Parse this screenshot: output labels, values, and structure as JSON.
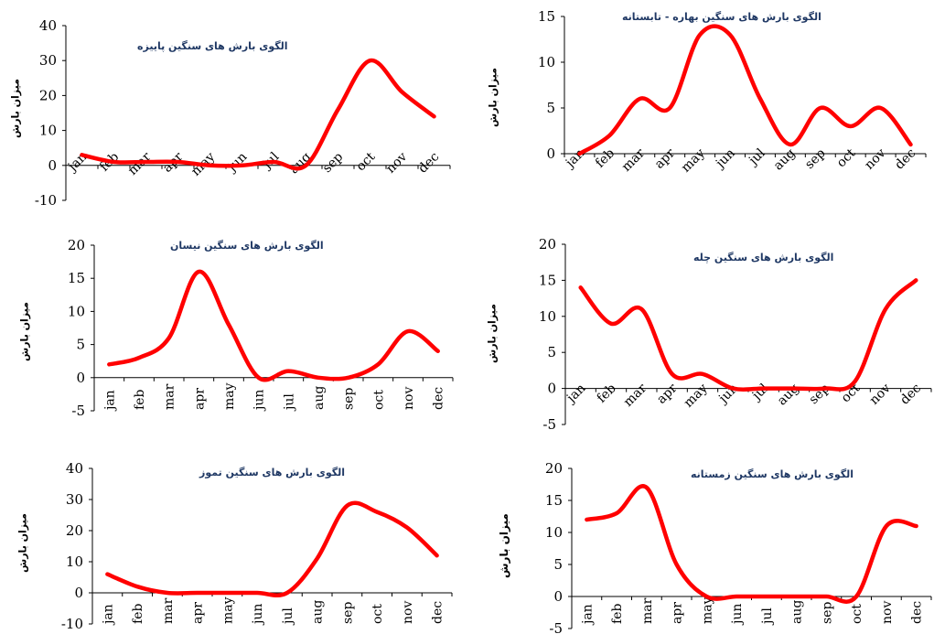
{
  "chart_data": [
    {
      "type": "line",
      "title": "الگوی بارش های سنگین پاییزه",
      "ylabel": "میزان بارش",
      "categories": [
        "jan",
        "feb",
        "mar",
        "apr",
        "may",
        "jun",
        "jul",
        "aug",
        "sep",
        "oct",
        "nov",
        "dec"
      ],
      "values": [
        3,
        1,
        1,
        1,
        0,
        0,
        1,
        0,
        16,
        30,
        21,
        14
      ],
      "ylim": [
        -10,
        40
      ],
      "yticks": [
        -10,
        0,
        10,
        20,
        30,
        40
      ],
      "x_tick_rotation": "diagonal",
      "color": "#ff0000",
      "grid": false
    },
    {
      "type": "line",
      "title": "الگوی  بارش های سنگین بهاره - تابستانه",
      "ylabel": "میزان بارش",
      "categories": [
        "jan",
        "feb",
        "mar",
        "apr",
        "may",
        "jun",
        "jul",
        "aug",
        "sep",
        "oct",
        "nov",
        "dec"
      ],
      "values": [
        0,
        2,
        6,
        5,
        13,
        13,
        6,
        1,
        5,
        3,
        5,
        1
      ],
      "ylim": [
        0,
        15
      ],
      "yticks": [
        0,
        5,
        10,
        15
      ],
      "x_tick_rotation": "diagonal",
      "color": "#ff0000",
      "grid": false
    },
    {
      "type": "line",
      "title": "الگوی بارش های سنگین نیسان",
      "ylabel": "میزان بارش",
      "categories": [
        "jan",
        "feb",
        "mar",
        "apr",
        "may",
        "jun",
        "jul",
        "aug",
        "sep",
        "oct",
        "nov",
        "dec"
      ],
      "values": [
        2,
        3,
        6,
        16,
        8,
        0,
        1,
        0,
        0,
        2,
        7,
        4
      ],
      "ylim": [
        -5,
        20
      ],
      "yticks": [
        -5,
        0,
        5,
        10,
        15,
        20
      ],
      "x_tick_rotation": "vertical",
      "color": "#ff0000",
      "grid": false
    },
    {
      "type": "line",
      "title": "الگوی بارش های سنگین چله",
      "ylabel": "میزان بارش",
      "categories": [
        "jan",
        "feb",
        "mar",
        "apr",
        "may",
        "jun",
        "jul",
        "aug",
        "sep",
        "oct",
        "nov",
        "dec"
      ],
      "values": [
        14,
        9,
        11,
        2,
        2,
        0,
        0,
        0,
        0,
        1,
        11,
        15
      ],
      "ylim": [
        -5,
        20
      ],
      "yticks": [
        -5,
        0,
        5,
        10,
        15,
        20
      ],
      "x_tick_rotation": "diagonal",
      "color": "#ff0000",
      "grid": false
    },
    {
      "type": "line",
      "title": "الگوی بارش های سنگین تموز",
      "ylabel": "میزان بارش",
      "categories": [
        "jan",
        "feb",
        "mar",
        "apr",
        "may",
        "jun",
        "jul",
        "aug",
        "sep",
        "oct",
        "nov",
        "dec"
      ],
      "values": [
        6,
        2,
        0,
        0,
        0,
        0,
        0,
        11,
        28,
        26,
        21,
        12
      ],
      "ylim": [
        -10,
        40
      ],
      "yticks": [
        -10,
        0,
        10,
        20,
        30,
        40
      ],
      "x_tick_rotation": "vertical",
      "color": "#ff0000",
      "grid": false
    },
    {
      "type": "line",
      "title": "الگوی  بارش های سنگین زمستانه",
      "ylabel": "میزان بارش",
      "categories": [
        "jan",
        "feb",
        "mar",
        "apr",
        "may",
        "jun",
        "jul",
        "aug",
        "sep",
        "oct",
        "nov",
        "dec"
      ],
      "values": [
        12,
        13,
        17,
        5,
        0,
        0,
        0,
        0,
        0,
        0,
        11,
        11
      ],
      "ylim": [
        -5,
        20
      ],
      "yticks": [
        -5,
        0,
        5,
        10,
        15,
        20
      ],
      "x_tick_rotation": "vertical",
      "color": "#ff0000",
      "grid": false
    }
  ]
}
